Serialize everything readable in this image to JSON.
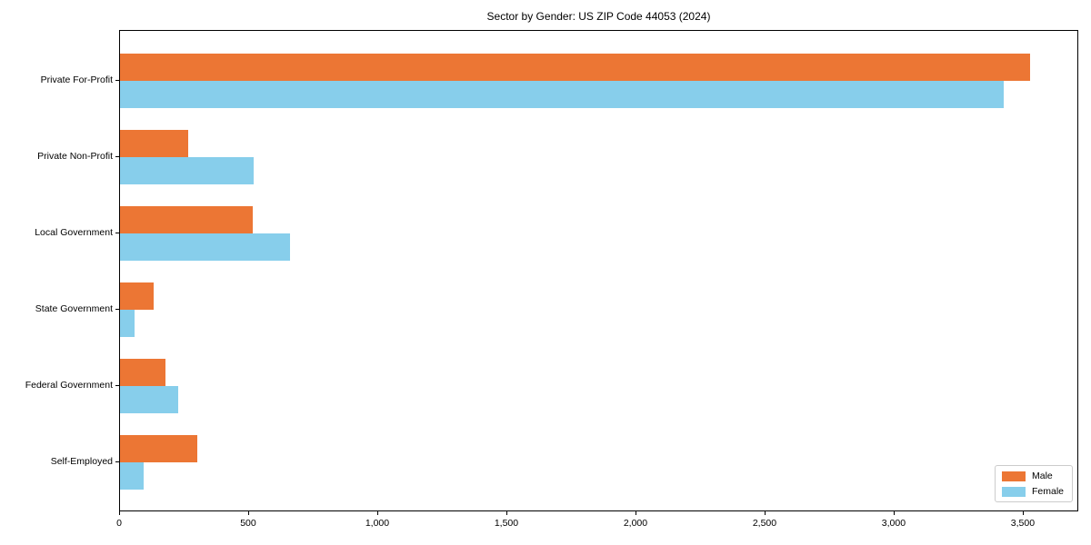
{
  "chart_data": {
    "type": "bar",
    "orientation": "horizontal",
    "title": "Sector by Gender: US ZIP Code 44053 (2024)",
    "categories": [
      "Private For-Profit",
      "Private Non-Profit",
      "Local Government",
      "State Government",
      "Federal Government",
      "Self-Employed"
    ],
    "series": [
      {
        "name": "Male",
        "color": "#ec7634",
        "values": [
          3530,
          265,
          515,
          130,
          175,
          300
        ]
      },
      {
        "name": "Female",
        "color": "#87ceeb",
        "values": [
          3430,
          520,
          660,
          55,
          225,
          90
        ]
      }
    ],
    "xlim": [
      0,
      3715
    ],
    "xticks": {
      "values": [
        0,
        500,
        1000,
        1500,
        2000,
        2500,
        3000,
        3500
      ],
      "labels": [
        "0",
        "500",
        "1,000",
        "1,500",
        "2,000",
        "2,500",
        "3,000",
        "3,500"
      ]
    },
    "grid": false,
    "legend": {
      "position": "lower right"
    },
    "colors": {
      "spine": "#000000",
      "text": "#000000",
      "legend_border": "#cccccc"
    }
  }
}
